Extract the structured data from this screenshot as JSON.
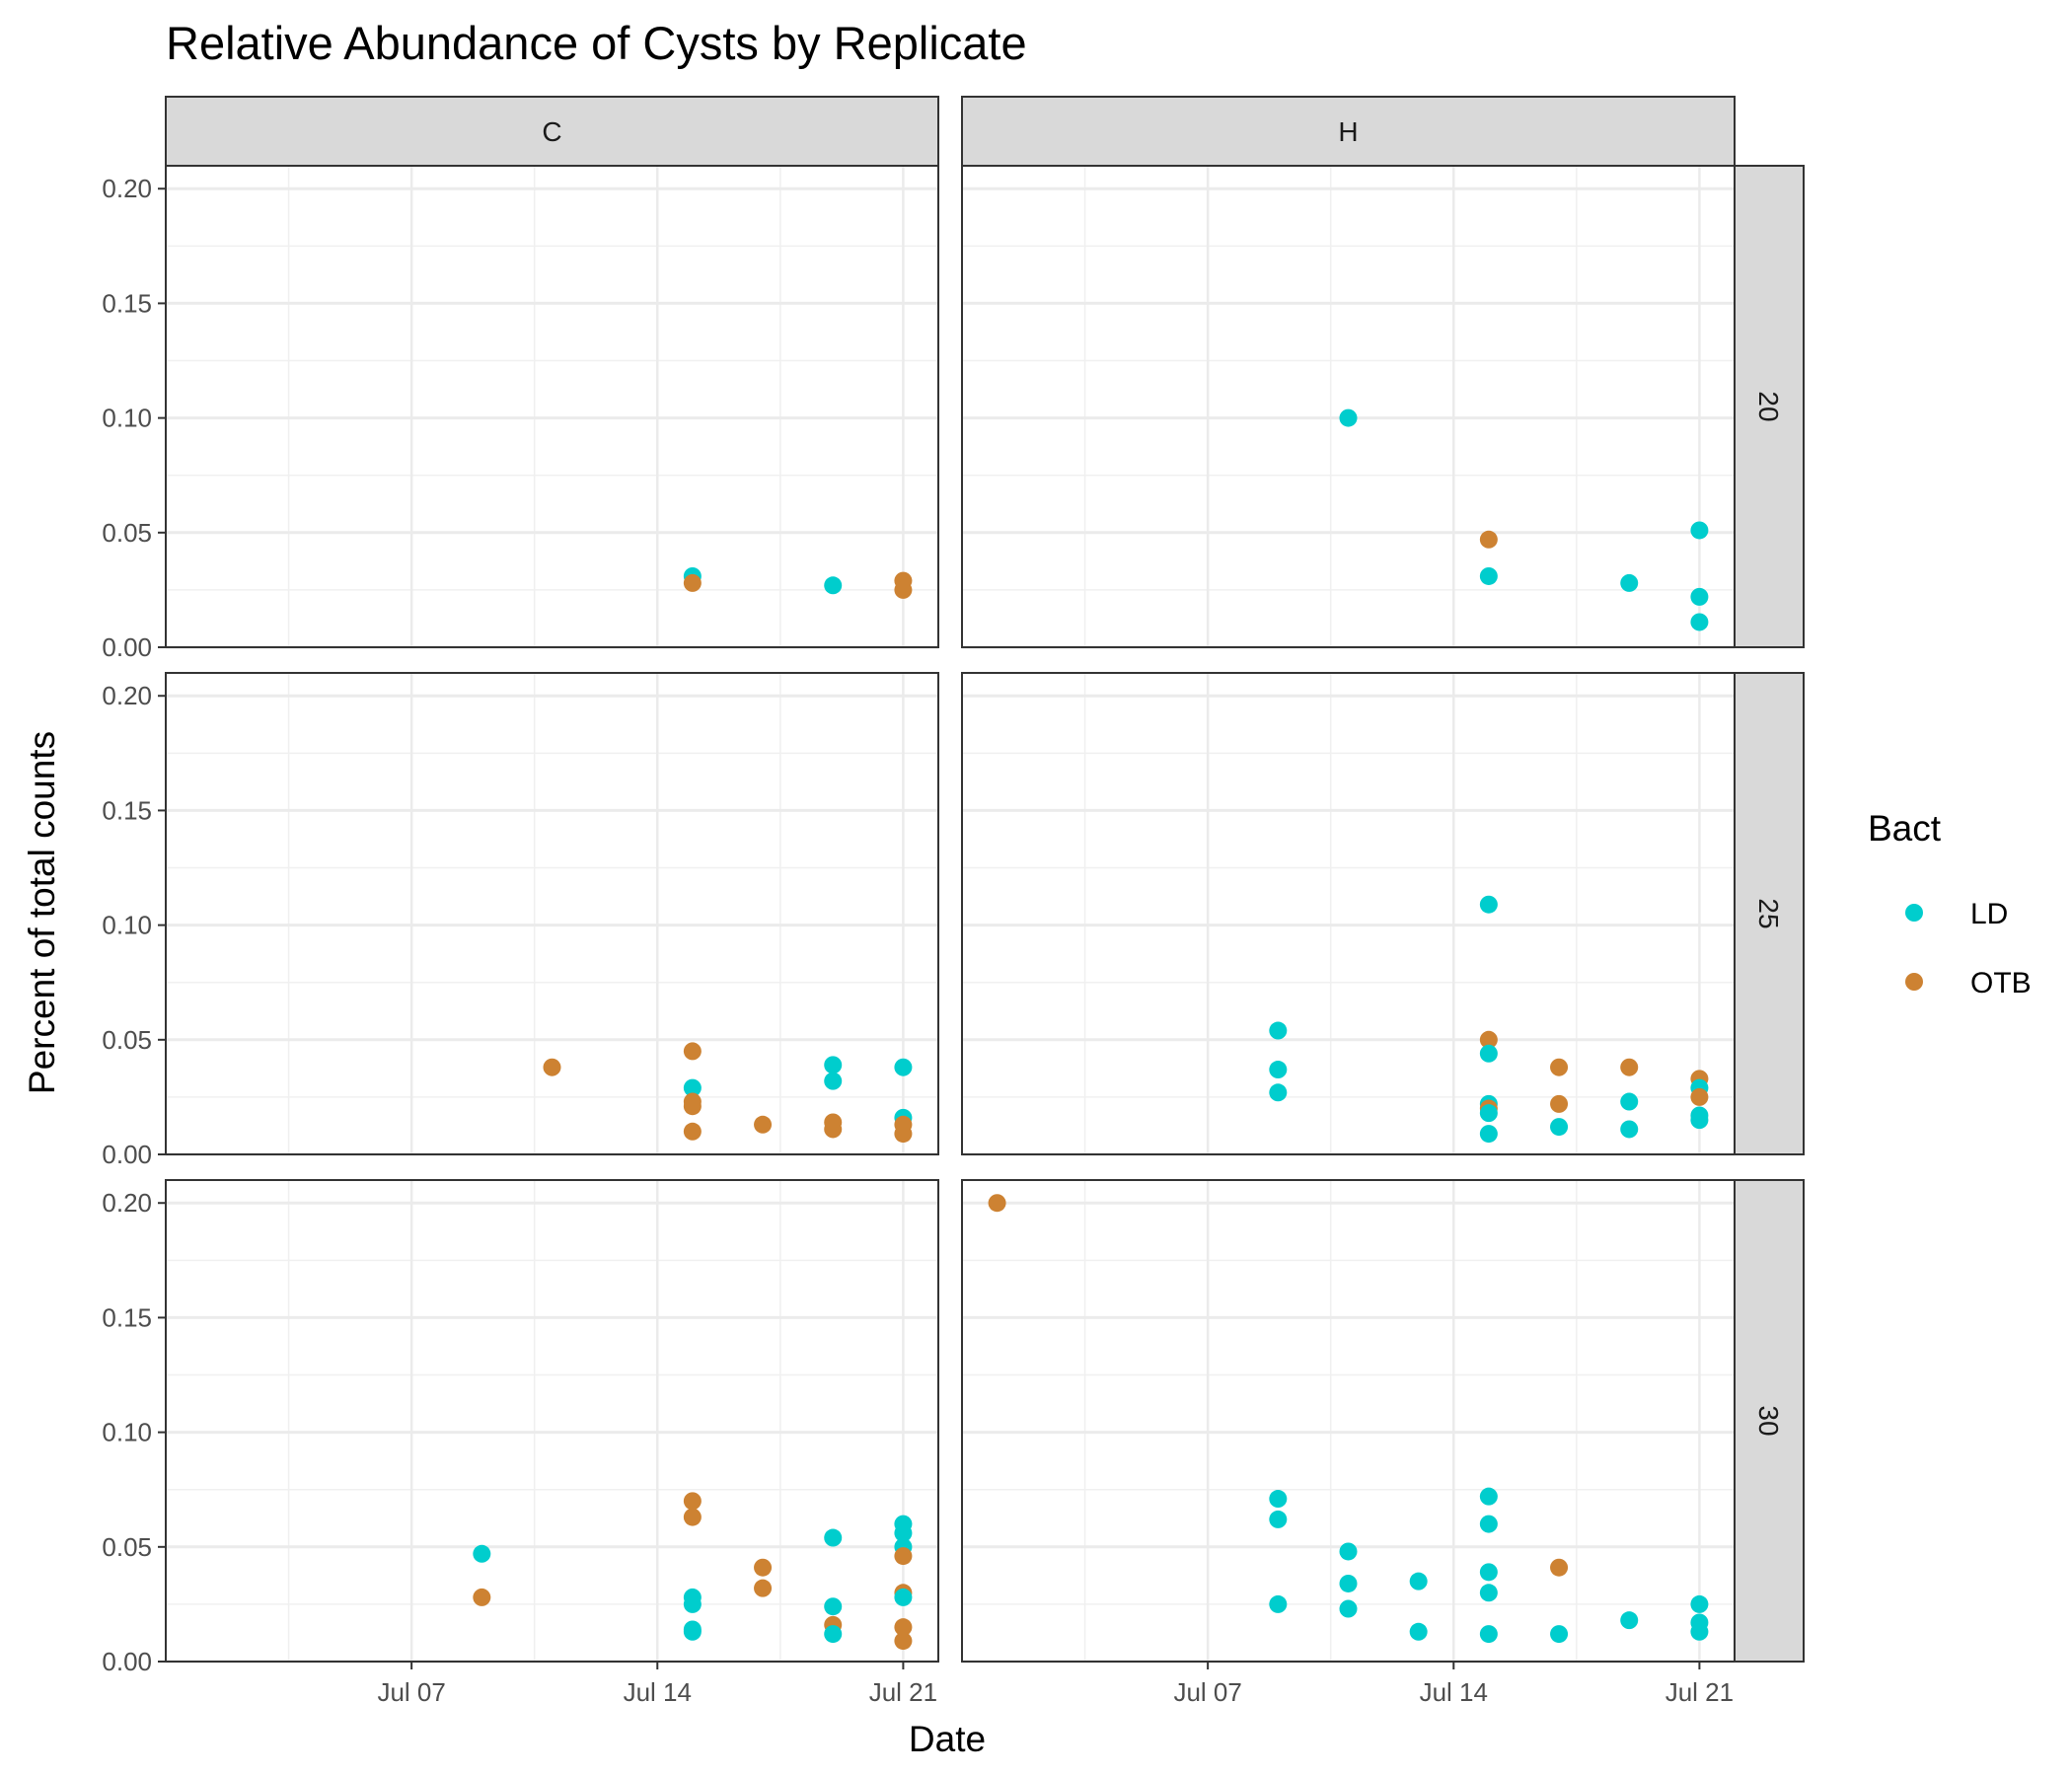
{
  "chart_data": {
    "type": "scatter",
    "title": "Relative Abundance of Cysts by Replicate",
    "xlabel": "Date",
    "ylabel": "Percent of total counts",
    "x_type": "date",
    "xlim": [
      "2024-06-30",
      "2024-07-22"
    ],
    "x_ticks": [
      {
        "value": "2024-07-07",
        "label": "Jul 07"
      },
      {
        "value": "2024-07-14",
        "label": "Jul 14"
      },
      {
        "value": "2024-07-21",
        "label": "Jul 21"
      }
    ],
    "ylim": [
      0,
      0.21
    ],
    "y_ticks": [
      {
        "value": 0.0,
        "label": "0.00"
      },
      {
        "value": 0.05,
        "label": "0.05"
      },
      {
        "value": 0.1,
        "label": "0.10"
      },
      {
        "value": 0.15,
        "label": "0.15"
      },
      {
        "value": 0.2,
        "label": "0.20"
      }
    ],
    "grid": true,
    "col_facets": [
      "C",
      "H"
    ],
    "row_facets": [
      "20",
      "25",
      "30"
    ],
    "legend": {
      "title": "Bact",
      "placement": "right",
      "entries": [
        {
          "name": "LD",
          "color": "#00CDCD"
        },
        {
          "name": "OTB",
          "color": "#CD8232"
        }
      ]
    },
    "panels": [
      {
        "col": "C",
        "row": "20",
        "points": [
          {
            "x": "2024-07-15",
            "y": 0.031,
            "bact": "LD"
          },
          {
            "x": "2024-07-15",
            "y": 0.028,
            "bact": "OTB"
          },
          {
            "x": "2024-07-19",
            "y": 0.027,
            "bact": "LD"
          },
          {
            "x": "2024-07-21",
            "y": 0.029,
            "bact": "OTB"
          },
          {
            "x": "2024-07-21",
            "y": 0.025,
            "bact": "OTB"
          }
        ]
      },
      {
        "col": "H",
        "row": "20",
        "points": [
          {
            "x": "2024-07-11",
            "y": 0.1,
            "bact": "LD"
          },
          {
            "x": "2024-07-15",
            "y": 0.047,
            "bact": "OTB"
          },
          {
            "x": "2024-07-15",
            "y": 0.031,
            "bact": "LD"
          },
          {
            "x": "2024-07-19",
            "y": 0.028,
            "bact": "LD"
          },
          {
            "x": "2024-07-21",
            "y": 0.051,
            "bact": "LD"
          },
          {
            "x": "2024-07-21",
            "y": 0.022,
            "bact": "LD"
          },
          {
            "x": "2024-07-21",
            "y": 0.011,
            "bact": "LD"
          }
        ]
      },
      {
        "col": "C",
        "row": "25",
        "points": [
          {
            "x": "2024-07-11",
            "y": 0.038,
            "bact": "OTB"
          },
          {
            "x": "2024-07-15",
            "y": 0.045,
            "bact": "OTB"
          },
          {
            "x": "2024-07-15",
            "y": 0.029,
            "bact": "LD"
          },
          {
            "x": "2024-07-15",
            "y": 0.023,
            "bact": "OTB"
          },
          {
            "x": "2024-07-15",
            "y": 0.021,
            "bact": "OTB"
          },
          {
            "x": "2024-07-15",
            "y": 0.01,
            "bact": "OTB"
          },
          {
            "x": "2024-07-17",
            "y": 0.013,
            "bact": "OTB"
          },
          {
            "x": "2024-07-19",
            "y": 0.039,
            "bact": "LD"
          },
          {
            "x": "2024-07-19",
            "y": 0.032,
            "bact": "LD"
          },
          {
            "x": "2024-07-19",
            "y": 0.014,
            "bact": "OTB"
          },
          {
            "x": "2024-07-19",
            "y": 0.011,
            "bact": "OTB"
          },
          {
            "x": "2024-07-21",
            "y": 0.038,
            "bact": "LD"
          },
          {
            "x": "2024-07-21",
            "y": 0.016,
            "bact": "LD"
          },
          {
            "x": "2024-07-21",
            "y": 0.013,
            "bact": "OTB"
          },
          {
            "x": "2024-07-21",
            "y": 0.009,
            "bact": "OTB"
          }
        ]
      },
      {
        "col": "H",
        "row": "25",
        "points": [
          {
            "x": "2024-07-09",
            "y": 0.054,
            "bact": "LD"
          },
          {
            "x": "2024-07-09",
            "y": 0.037,
            "bact": "LD"
          },
          {
            "x": "2024-07-09",
            "y": 0.027,
            "bact": "LD"
          },
          {
            "x": "2024-07-15",
            "y": 0.109,
            "bact": "LD"
          },
          {
            "x": "2024-07-15",
            "y": 0.05,
            "bact": "OTB"
          },
          {
            "x": "2024-07-15",
            "y": 0.044,
            "bact": "LD"
          },
          {
            "x": "2024-07-15",
            "y": 0.022,
            "bact": "LD"
          },
          {
            "x": "2024-07-15",
            "y": 0.02,
            "bact": "OTB"
          },
          {
            "x": "2024-07-15",
            "y": 0.018,
            "bact": "LD"
          },
          {
            "x": "2024-07-15",
            "y": 0.009,
            "bact": "LD"
          },
          {
            "x": "2024-07-17",
            "y": 0.038,
            "bact": "OTB"
          },
          {
            "x": "2024-07-17",
            "y": 0.022,
            "bact": "OTB"
          },
          {
            "x": "2024-07-17",
            "y": 0.012,
            "bact": "LD"
          },
          {
            "x": "2024-07-19",
            "y": 0.038,
            "bact": "OTB"
          },
          {
            "x": "2024-07-19",
            "y": 0.023,
            "bact": "LD"
          },
          {
            "x": "2024-07-19",
            "y": 0.011,
            "bact": "LD"
          },
          {
            "x": "2024-07-21",
            "y": 0.033,
            "bact": "OTB"
          },
          {
            "x": "2024-07-21",
            "y": 0.029,
            "bact": "LD"
          },
          {
            "x": "2024-07-21",
            "y": 0.025,
            "bact": "OTB"
          },
          {
            "x": "2024-07-21",
            "y": 0.017,
            "bact": "LD"
          },
          {
            "x": "2024-07-21",
            "y": 0.015,
            "bact": "LD"
          }
        ]
      },
      {
        "col": "C",
        "row": "30",
        "points": [
          {
            "x": "2024-07-09",
            "y": 0.047,
            "bact": "LD"
          },
          {
            "x": "2024-07-09",
            "y": 0.028,
            "bact": "OTB"
          },
          {
            "x": "2024-07-15",
            "y": 0.07,
            "bact": "OTB"
          },
          {
            "x": "2024-07-15",
            "y": 0.063,
            "bact": "OTB"
          },
          {
            "x": "2024-07-15",
            "y": 0.028,
            "bact": "LD"
          },
          {
            "x": "2024-07-15",
            "y": 0.025,
            "bact": "LD"
          },
          {
            "x": "2024-07-15",
            "y": 0.014,
            "bact": "LD"
          },
          {
            "x": "2024-07-15",
            "y": 0.013,
            "bact": "LD"
          },
          {
            "x": "2024-07-17",
            "y": 0.041,
            "bact": "OTB"
          },
          {
            "x": "2024-07-17",
            "y": 0.032,
            "bact": "OTB"
          },
          {
            "x": "2024-07-19",
            "y": 0.054,
            "bact": "LD"
          },
          {
            "x": "2024-07-19",
            "y": 0.024,
            "bact": "LD"
          },
          {
            "x": "2024-07-19",
            "y": 0.016,
            "bact": "OTB"
          },
          {
            "x": "2024-07-19",
            "y": 0.012,
            "bact": "LD"
          },
          {
            "x": "2024-07-21",
            "y": 0.06,
            "bact": "LD"
          },
          {
            "x": "2024-07-21",
            "y": 0.056,
            "bact": "LD"
          },
          {
            "x": "2024-07-21",
            "y": 0.05,
            "bact": "LD"
          },
          {
            "x": "2024-07-21",
            "y": 0.046,
            "bact": "OTB"
          },
          {
            "x": "2024-07-21",
            "y": 0.03,
            "bact": "OTB"
          },
          {
            "x": "2024-07-21",
            "y": 0.028,
            "bact": "LD"
          },
          {
            "x": "2024-07-21",
            "y": 0.015,
            "bact": "OTB"
          },
          {
            "x": "2024-07-21",
            "y": 0.009,
            "bact": "OTB"
          }
        ]
      },
      {
        "col": "H",
        "row": "30",
        "points": [
          {
            "x": "2024-07-01",
            "y": 0.2,
            "bact": "OTB"
          },
          {
            "x": "2024-07-09",
            "y": 0.071,
            "bact": "LD"
          },
          {
            "x": "2024-07-09",
            "y": 0.062,
            "bact": "LD"
          },
          {
            "x": "2024-07-09",
            "y": 0.025,
            "bact": "LD"
          },
          {
            "x": "2024-07-11",
            "y": 0.048,
            "bact": "LD"
          },
          {
            "x": "2024-07-11",
            "y": 0.034,
            "bact": "LD"
          },
          {
            "x": "2024-07-11",
            "y": 0.023,
            "bact": "LD"
          },
          {
            "x": "2024-07-13",
            "y": 0.035,
            "bact": "LD"
          },
          {
            "x": "2024-07-13",
            "y": 0.013,
            "bact": "LD"
          },
          {
            "x": "2024-07-15",
            "y": 0.072,
            "bact": "LD"
          },
          {
            "x": "2024-07-15",
            "y": 0.06,
            "bact": "LD"
          },
          {
            "x": "2024-07-15",
            "y": 0.039,
            "bact": "LD"
          },
          {
            "x": "2024-07-15",
            "y": 0.03,
            "bact": "LD"
          },
          {
            "x": "2024-07-15",
            "y": 0.012,
            "bact": "LD"
          },
          {
            "x": "2024-07-17",
            "y": 0.041,
            "bact": "OTB"
          },
          {
            "x": "2024-07-17",
            "y": 0.012,
            "bact": "LD"
          },
          {
            "x": "2024-07-19",
            "y": 0.018,
            "bact": "LD"
          },
          {
            "x": "2024-07-21",
            "y": 0.025,
            "bact": "LD"
          },
          {
            "x": "2024-07-21",
            "y": 0.017,
            "bact": "LD"
          },
          {
            "x": "2024-07-21",
            "y": 0.013,
            "bact": "LD"
          }
        ]
      }
    ]
  }
}
